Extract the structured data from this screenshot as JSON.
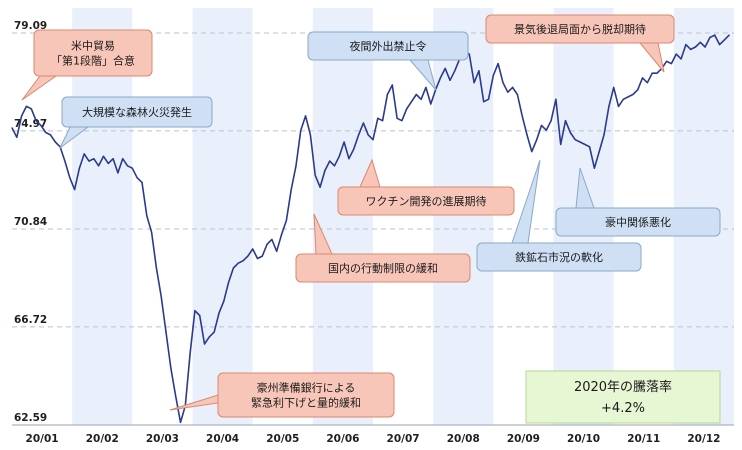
{
  "chart_data": {
    "type": "line",
    "ylim": [
      62.59,
      79.09
    ],
    "y_ticks": [
      "79.09",
      "74.97",
      "70.84",
      "66.72",
      "62.59"
    ],
    "x_ticks": [
      "20/01",
      "20/02",
      "20/03",
      "20/04",
      "20/05",
      "20/06",
      "20/07",
      "20/08",
      "20/09",
      "20/10",
      "20/11",
      "20/12"
    ],
    "x_ticks_pos": [
      0,
      1,
      2,
      3,
      4,
      5,
      6,
      7,
      8,
      9,
      10,
      11
    ],
    "grid": true,
    "band_color": "#eaf0fb",
    "line_color": "#2b3a8f",
    "x": [
      0,
      0.08,
      0.16,
      0.24,
      0.32,
      0.4,
      0.48,
      0.56,
      0.64,
      0.72,
      0.8,
      0.88,
      0.96,
      1.04,
      1.12,
      1.2,
      1.28,
      1.36,
      1.44,
      1.52,
      1.6,
      1.68,
      1.76,
      1.84,
      1.92,
      2.0,
      2.08,
      2.16,
      2.24,
      2.32,
      2.4,
      2.48,
      2.56,
      2.64,
      2.72,
      2.8,
      2.88,
      2.96,
      3.04,
      3.12,
      3.2,
      3.28,
      3.36,
      3.44,
      3.52,
      3.6,
      3.68,
      3.76,
      3.84,
      3.92,
      4.0,
      4.08,
      4.16,
      4.24,
      4.32,
      4.4,
      4.48,
      4.56,
      4.64,
      4.72,
      4.8,
      4.88,
      4.96,
      5.04,
      5.12,
      5.2,
      5.28,
      5.36,
      5.44,
      5.52,
      5.6,
      5.68,
      5.76,
      5.84,
      5.92,
      6.0,
      6.08,
      6.16,
      6.24,
      6.32,
      6.4,
      6.48,
      6.56,
      6.64,
      6.72,
      6.8,
      6.88,
      6.96,
      7.04,
      7.12,
      7.2,
      7.28,
      7.36,
      7.44,
      7.52,
      7.6,
      7.68,
      7.76,
      7.84,
      7.92,
      8.0,
      8.08,
      8.16,
      8.24,
      8.32,
      8.4,
      8.48,
      8.56,
      8.64,
      8.72,
      8.8,
      8.88,
      8.96,
      9.04,
      9.12,
      9.2,
      9.28,
      9.36,
      9.44,
      9.52,
      9.6,
      9.68,
      9.76,
      9.84,
      9.92,
      10.0,
      10.08,
      10.16,
      10.24,
      10.32,
      10.4,
      10.48,
      10.56,
      10.64,
      10.72,
      10.8,
      10.88,
      10.96,
      11.04,
      11.12,
      11.2,
      11.28,
      11.36,
      11.44,
      11.52,
      11.6,
      11.68,
      11.76,
      11.84,
      11.92
    ],
    "values": [
      75.1,
      74.7,
      75.6,
      76.0,
      75.9,
      75.4,
      75.2,
      74.9,
      74.8,
      74.5,
      74.3,
      73.7,
      73.0,
      72.5,
      73.4,
      74.0,
      73.7,
      73.8,
      73.5,
      73.9,
      73.6,
      73.8,
      73.2,
      73.8,
      73.5,
      73.4,
      73.0,
      72.8,
      71.4,
      70.7,
      69.2,
      68.0,
      66.5,
      65.0,
      63.8,
      62.7,
      63.4,
      65.6,
      67.4,
      67.2,
      66.0,
      66.3,
      66.5,
      67.3,
      67.8,
      68.6,
      69.2,
      69.4,
      69.5,
      69.7,
      70.0,
      69.6,
      69.7,
      70.2,
      70.4,
      69.9,
      70.6,
      71.2,
      72.5,
      73.5,
      75.0,
      75.6,
      74.8,
      73.1,
      72.6,
      73.3,
      73.7,
      73.5,
      73.9,
      74.5,
      73.8,
      74.2,
      74.8,
      75.3,
      74.8,
      74.6,
      75.5,
      75.4,
      76.5,
      76.9,
      75.5,
      75.4,
      75.9,
      76.2,
      76.5,
      76.3,
      76.8,
      76.1,
      76.7,
      77.2,
      77.6,
      77.1,
      77.5,
      78.0,
      78.3,
      78.2,
      77.0,
      77.5,
      76.2,
      76.3,
      77.3,
      77.8,
      77.0,
      76.6,
      76.8,
      76.5,
      75.6,
      74.8,
      74.1,
      74.6,
      75.2,
      75.0,
      75.4,
      76.3,
      74.4,
      75.4,
      74.9,
      74.6,
      74.5,
      74.4,
      74.3,
      73.4,
      74.1,
      74.8,
      76.0,
      76.8,
      76.0,
      76.3,
      76.4,
      76.5,
      76.7,
      77.2,
      77.0,
      77.4,
      77.4,
      77.6,
      77.9,
      77.8,
      78.2,
      78.0,
      78.6,
      78.4,
      78.5,
      78.7,
      78.5,
      78.9,
      79.0,
      78.6,
      78.8,
      79.0
    ],
    "callouts": [
      {
        "id": "c1",
        "lines": [
          "米中貿易",
          "「第1段階」合意"
        ],
        "fill": "#f8c6b8",
        "stroke": "#d98870"
      },
      {
        "id": "c2",
        "lines": [
          "大規模な森林火災発生"
        ],
        "fill": "#cfe0f5",
        "stroke": "#8ba7c8"
      },
      {
        "id": "c3",
        "lines": [
          "豪州準備銀行による",
          "緊急利下げと量的緩和"
        ],
        "fill": "#f8c6b8",
        "stroke": "#d98870"
      },
      {
        "id": "c4",
        "lines": [
          "夜間外出禁止令"
        ],
        "fill": "#cfe0f5",
        "stroke": "#8ba7c8"
      },
      {
        "id": "c5",
        "lines": [
          "ワクチン開発の進展期待"
        ],
        "fill": "#f8c6b8",
        "stroke": "#d98870"
      },
      {
        "id": "c6",
        "lines": [
          "国内の行動制限の緩和"
        ],
        "fill": "#f8c6b8",
        "stroke": "#d98870"
      },
      {
        "id": "c7",
        "lines": [
          "景気後退局面から脱却期待"
        ],
        "fill": "#f8c6b8",
        "stroke": "#d98870"
      },
      {
        "id": "c8",
        "lines": [
          "鉄鉱石市況の軟化"
        ],
        "fill": "#cfe0f5",
        "stroke": "#8ba7c8"
      },
      {
        "id": "c9",
        "lines": [
          "豪中関係悪化"
        ],
        "fill": "#cfe0f5",
        "stroke": "#8ba7c8"
      }
    ],
    "stat_box": {
      "line1": "2020年の騰落率",
      "line2": "+4.2%",
      "fill": "#e7f6d3",
      "stroke": "#b6d699"
    }
  }
}
